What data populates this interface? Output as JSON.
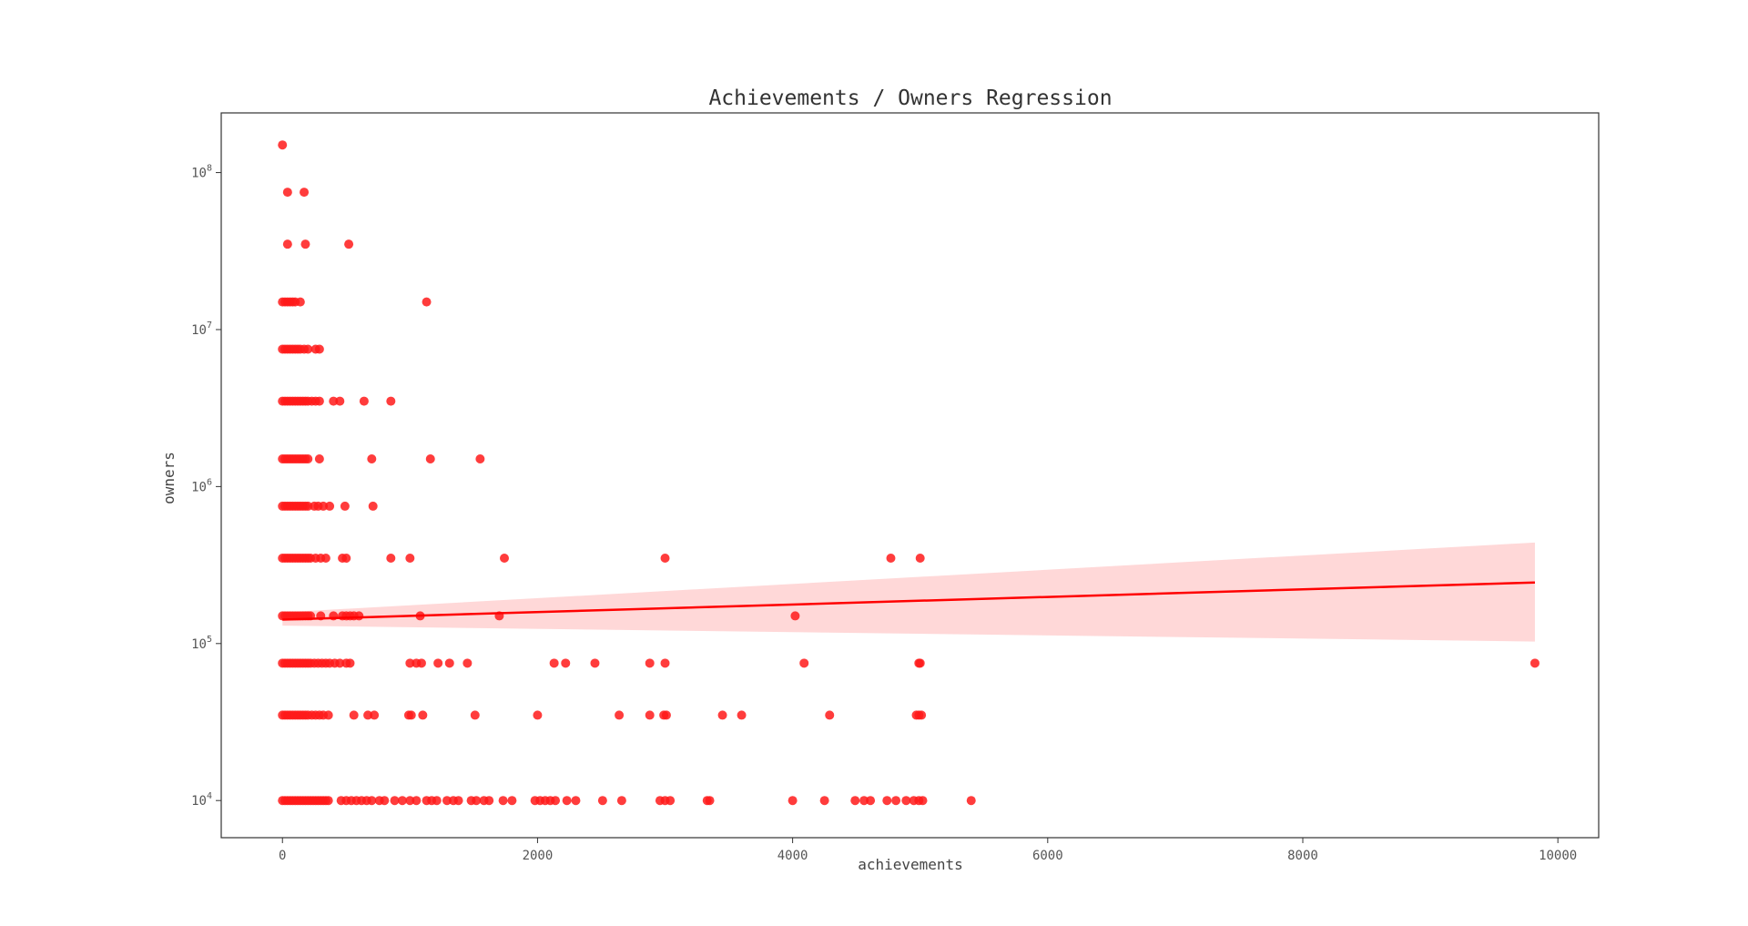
{
  "chart_data": {
    "type": "scatter",
    "title": "Achievements / Owners Regression",
    "xlabel": "achievements",
    "ylabel": "owners",
    "xlim": [
      -480,
      10320
    ],
    "ylim": [
      5800,
      240000000
    ],
    "y_scale": "log",
    "x_ticks": [
      0,
      2000,
      4000,
      6000,
      8000,
      10000
    ],
    "x_tick_labels": [
      "0",
      "2000",
      "4000",
      "6000",
      "8000",
      "10000"
    ],
    "y_ticks": [
      10000,
      100000,
      1000000,
      10000000,
      100000000
    ],
    "y_tick_labels": [
      {
        "base": "10",
        "exp": "4"
      },
      {
        "base": "10",
        "exp": "5"
      },
      {
        "base": "10",
        "exp": "6"
      },
      {
        "base": "10",
        "exp": "7"
      },
      {
        "base": "10",
        "exp": "8"
      }
    ],
    "grid": false,
    "colors": {
      "points": "#ff1a1a",
      "line": "#ff0000",
      "band": "#ffd6d6",
      "frame": "#333333"
    },
    "series": [
      {
        "name": "",
        "kind": "scatter",
        "points": [
          [
            0,
            150000000
          ],
          [
            40,
            75000000
          ],
          [
            170,
            75000000
          ],
          [
            40,
            35000000
          ],
          [
            180,
            35000000
          ],
          [
            520,
            35000000
          ],
          [
            0,
            15000000
          ],
          [
            20,
            15000000
          ],
          [
            40,
            15000000
          ],
          [
            60,
            15000000
          ],
          [
            80,
            15000000
          ],
          [
            100,
            15000000
          ],
          [
            140,
            15000000
          ],
          [
            1130,
            15000000
          ],
          [
            0,
            7500000
          ],
          [
            20,
            7500000
          ],
          [
            40,
            7500000
          ],
          [
            60,
            7500000
          ],
          [
            80,
            7500000
          ],
          [
            100,
            7500000
          ],
          [
            120,
            7500000
          ],
          [
            140,
            7500000
          ],
          [
            170,
            7500000
          ],
          [
            200,
            7500000
          ],
          [
            260,
            7500000
          ],
          [
            290,
            7500000
          ],
          [
            0,
            3500000
          ],
          [
            20,
            3500000
          ],
          [
            40,
            3500000
          ],
          [
            60,
            3500000
          ],
          [
            80,
            3500000
          ],
          [
            100,
            3500000
          ],
          [
            120,
            3500000
          ],
          [
            140,
            3500000
          ],
          [
            160,
            3500000
          ],
          [
            180,
            3500000
          ],
          [
            200,
            3500000
          ],
          [
            230,
            3500000
          ],
          [
            260,
            3500000
          ],
          [
            290,
            3500000
          ],
          [
            400,
            3500000
          ],
          [
            450,
            3500000
          ],
          [
            640,
            3500000
          ],
          [
            850,
            3500000
          ],
          [
            0,
            1500000
          ],
          [
            20,
            1500000
          ],
          [
            40,
            1500000
          ],
          [
            60,
            1500000
          ],
          [
            80,
            1500000
          ],
          [
            100,
            1500000
          ],
          [
            120,
            1500000
          ],
          [
            140,
            1500000
          ],
          [
            160,
            1500000
          ],
          [
            180,
            1500000
          ],
          [
            200,
            1500000
          ],
          [
            290,
            1500000
          ],
          [
            700,
            1500000
          ],
          [
            1160,
            1500000
          ],
          [
            1550,
            1500000
          ],
          [
            0,
            750000
          ],
          [
            20,
            750000
          ],
          [
            40,
            750000
          ],
          [
            60,
            750000
          ],
          [
            80,
            750000
          ],
          [
            100,
            750000
          ],
          [
            120,
            750000
          ],
          [
            140,
            750000
          ],
          [
            160,
            750000
          ],
          [
            180,
            750000
          ],
          [
            200,
            750000
          ],
          [
            250,
            750000
          ],
          [
            280,
            750000
          ],
          [
            320,
            750000
          ],
          [
            370,
            750000
          ],
          [
            490,
            750000
          ],
          [
            710,
            750000
          ],
          [
            0,
            350000
          ],
          [
            20,
            350000
          ],
          [
            40,
            350000
          ],
          [
            60,
            350000
          ],
          [
            80,
            350000
          ],
          [
            100,
            350000
          ],
          [
            120,
            350000
          ],
          [
            140,
            350000
          ],
          [
            160,
            350000
          ],
          [
            180,
            350000
          ],
          [
            200,
            350000
          ],
          [
            220,
            350000
          ],
          [
            260,
            350000
          ],
          [
            300,
            350000
          ],
          [
            340,
            350000
          ],
          [
            470,
            350000
          ],
          [
            500,
            350000
          ],
          [
            850,
            350000
          ],
          [
            1000,
            350000
          ],
          [
            1740,
            350000
          ],
          [
            3000,
            350000
          ],
          [
            4770,
            350000
          ],
          [
            5000,
            350000
          ],
          [
            0,
            150000
          ],
          [
            20,
            150000
          ],
          [
            40,
            150000
          ],
          [
            60,
            150000
          ],
          [
            80,
            150000
          ],
          [
            100,
            150000
          ],
          [
            120,
            150000
          ],
          [
            140,
            150000
          ],
          [
            160,
            150000
          ],
          [
            180,
            150000
          ],
          [
            200,
            150000
          ],
          [
            220,
            150000
          ],
          [
            300,
            150000
          ],
          [
            400,
            150000
          ],
          [
            470,
            150000
          ],
          [
            500,
            150000
          ],
          [
            530,
            150000
          ],
          [
            560,
            150000
          ],
          [
            600,
            150000
          ],
          [
            1080,
            150000
          ],
          [
            1700,
            150000
          ],
          [
            4020,
            150000
          ],
          [
            0,
            75000
          ],
          [
            20,
            75000
          ],
          [
            40,
            75000
          ],
          [
            60,
            75000
          ],
          [
            80,
            75000
          ],
          [
            100,
            75000
          ],
          [
            120,
            75000
          ],
          [
            140,
            75000
          ],
          [
            160,
            75000
          ],
          [
            180,
            75000
          ],
          [
            200,
            75000
          ],
          [
            220,
            75000
          ],
          [
            250,
            75000
          ],
          [
            280,
            75000
          ],
          [
            310,
            75000
          ],
          [
            340,
            75000
          ],
          [
            370,
            75000
          ],
          [
            410,
            75000
          ],
          [
            450,
            75000
          ],
          [
            500,
            75000
          ],
          [
            530,
            75000
          ],
          [
            1000,
            75000
          ],
          [
            1050,
            75000
          ],
          [
            1090,
            75000
          ],
          [
            1220,
            75000
          ],
          [
            1310,
            75000
          ],
          [
            1450,
            75000
          ],
          [
            2130,
            75000
          ],
          [
            2220,
            75000
          ],
          [
            2450,
            75000
          ],
          [
            2880,
            75000
          ],
          [
            3000,
            75000
          ],
          [
            4090,
            75000
          ],
          [
            4990,
            75000
          ],
          [
            5000,
            75000
          ],
          [
            9820,
            75000
          ],
          [
            0,
            35000
          ],
          [
            20,
            35000
          ],
          [
            40,
            35000
          ],
          [
            60,
            35000
          ],
          [
            80,
            35000
          ],
          [
            100,
            35000
          ],
          [
            120,
            35000
          ],
          [
            140,
            35000
          ],
          [
            160,
            35000
          ],
          [
            180,
            35000
          ],
          [
            200,
            35000
          ],
          [
            230,
            35000
          ],
          [
            260,
            35000
          ],
          [
            290,
            35000
          ],
          [
            320,
            35000
          ],
          [
            360,
            35000
          ],
          [
            560,
            35000
          ],
          [
            670,
            35000
          ],
          [
            720,
            35000
          ],
          [
            990,
            35000
          ],
          [
            1010,
            35000
          ],
          [
            1100,
            35000
          ],
          [
            1510,
            35000
          ],
          [
            2000,
            35000
          ],
          [
            2640,
            35000
          ],
          [
            2880,
            35000
          ],
          [
            2990,
            35000
          ],
          [
            3010,
            35000
          ],
          [
            3450,
            35000
          ],
          [
            3600,
            35000
          ],
          [
            4290,
            35000
          ],
          [
            4970,
            35000
          ],
          [
            4990,
            35000
          ],
          [
            5010,
            35000
          ],
          [
            0,
            10000
          ],
          [
            20,
            10000
          ],
          [
            40,
            10000
          ],
          [
            60,
            10000
          ],
          [
            80,
            10000
          ],
          [
            100,
            10000
          ],
          [
            120,
            10000
          ],
          [
            140,
            10000
          ],
          [
            160,
            10000
          ],
          [
            180,
            10000
          ],
          [
            200,
            10000
          ],
          [
            220,
            10000
          ],
          [
            240,
            10000
          ],
          [
            260,
            10000
          ],
          [
            280,
            10000
          ],
          [
            300,
            10000
          ],
          [
            320,
            10000
          ],
          [
            340,
            10000
          ],
          [
            360,
            10000
          ],
          [
            460,
            10000
          ],
          [
            500,
            10000
          ],
          [
            540,
            10000
          ],
          [
            580,
            10000
          ],
          [
            620,
            10000
          ],
          [
            660,
            10000
          ],
          [
            700,
            10000
          ],
          [
            760,
            10000
          ],
          [
            800,
            10000
          ],
          [
            880,
            10000
          ],
          [
            940,
            10000
          ],
          [
            1000,
            10000
          ],
          [
            1050,
            10000
          ],
          [
            1130,
            10000
          ],
          [
            1170,
            10000
          ],
          [
            1210,
            10000
          ],
          [
            1290,
            10000
          ],
          [
            1340,
            10000
          ],
          [
            1380,
            10000
          ],
          [
            1480,
            10000
          ],
          [
            1520,
            10000
          ],
          [
            1580,
            10000
          ],
          [
            1620,
            10000
          ],
          [
            1730,
            10000
          ],
          [
            1800,
            10000
          ],
          [
            1980,
            10000
          ],
          [
            2020,
            10000
          ],
          [
            2060,
            10000
          ],
          [
            2100,
            10000
          ],
          [
            2140,
            10000
          ],
          [
            2230,
            10000
          ],
          [
            2300,
            10000
          ],
          [
            2510,
            10000
          ],
          [
            2660,
            10000
          ],
          [
            2960,
            10000
          ],
          [
            3000,
            10000
          ],
          [
            3040,
            10000
          ],
          [
            3330,
            10000
          ],
          [
            3350,
            10000
          ],
          [
            4000,
            10000
          ],
          [
            4250,
            10000
          ],
          [
            4490,
            10000
          ],
          [
            4560,
            10000
          ],
          [
            4610,
            10000
          ],
          [
            4740,
            10000
          ],
          [
            4810,
            10000
          ],
          [
            4890,
            10000
          ],
          [
            4950,
            10000
          ],
          [
            4990,
            10000
          ],
          [
            5020,
            10000
          ],
          [
            5400,
            10000
          ]
        ]
      },
      {
        "name": "",
        "kind": "regression",
        "line": [
          [
            0,
            142000
          ],
          [
            9820,
            245000
          ]
        ],
        "band_upper": [
          [
            0,
            158000
          ],
          [
            9820,
            440000
          ]
        ],
        "band_lower": [
          [
            0,
            130000
          ],
          [
            9820,
            103000
          ]
        ]
      }
    ]
  }
}
